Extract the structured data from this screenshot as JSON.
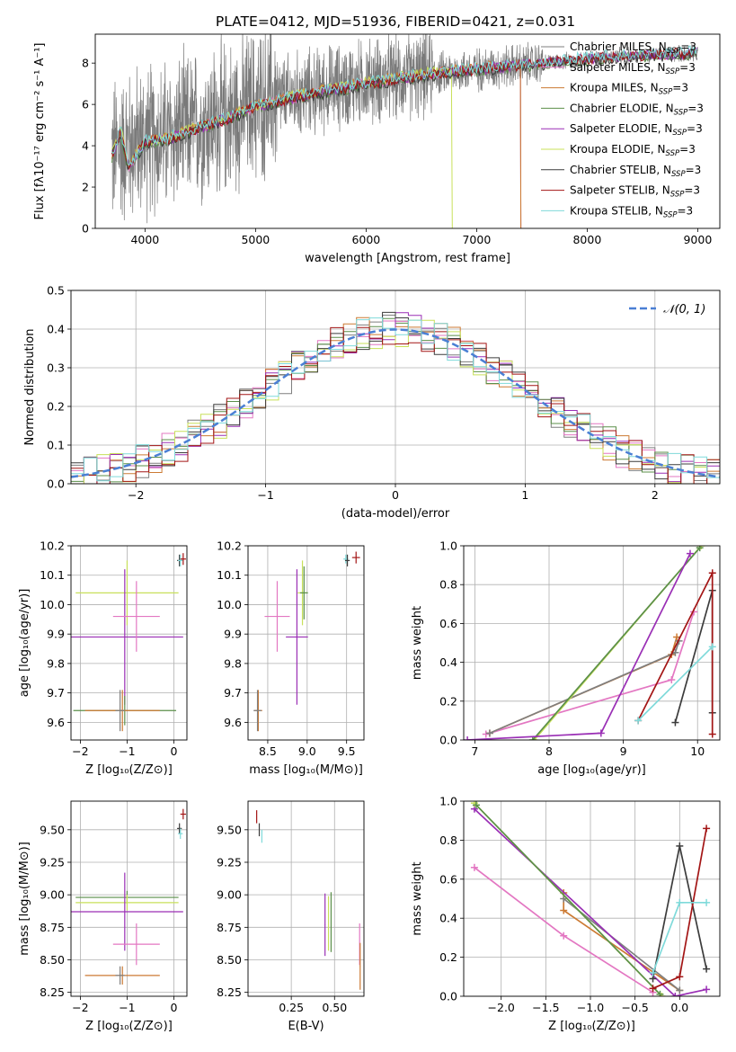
{
  "figure_title": "PLATE=0412, MJD=51936, FIBERID=0421, z=0.031",
  "colors": {
    "Chabrier MILES": "#7f7f7f",
    "Salpeter MILES": "#e377c2",
    "Kroupa MILES": "#cc7a33",
    "Chabrier ELODIE": "#5b8f4a",
    "Salpeter ELODIE": "#9a2fb5",
    "Kroupa ELODIE": "#c8e05a",
    "Chabrier STELIB": "#3c3c3c",
    "Salpeter STELIB": "#a31515",
    "Kroupa STELIB": "#7fdada",
    "gaussian": "#4a7fd4",
    "grid": "#b0b0b0"
  },
  "chart_data": [
    {
      "id": "spectrum",
      "type": "line",
      "title": "PLATE=0412, MJD=51936, FIBERID=0421, z=0.031",
      "xlabel": "wavelength [Angstrom, rest frame]",
      "ylabel": "Flux [fλ10⁻¹⁷ erg cm⁻² s⁻¹ A⁻¹]",
      "xlim": [
        3550,
        9200
      ],
      "ylim": [
        0,
        9.4
      ],
      "xticks": [
        4000,
        5000,
        6000,
        7000,
        8000,
        9000
      ],
      "yticks": [
        0,
        2,
        4,
        6,
        8
      ],
      "grid": false,
      "legend_position": "right",
      "legend": [
        {
          "base": "Chabrier MILES",
          "sub": "SSP",
          "tail": "=3",
          "label": "Chabrier MILES, N"
        },
        {
          "base": "Salpeter MILES",
          "sub": "SSP",
          "tail": "=3",
          "label": "Salpeter MILES, N"
        },
        {
          "base": "Kroupa MILES",
          "sub": "SSP",
          "tail": "=3",
          "label": "Kroupa MILES, N"
        },
        {
          "base": "Chabrier ELODIE",
          "sub": "SSP",
          "tail": "=3",
          "label": "Chabrier ELODIE, N"
        },
        {
          "base": "Salpeter ELODIE",
          "sub": "SSP",
          "tail": "=3",
          "label": "Salpeter ELODIE, N"
        },
        {
          "base": "Kroupa ELODIE",
          "sub": "SSP",
          "tail": "=3",
          "label": "Kroupa ELODIE, N"
        },
        {
          "base": "Chabrier STELIB",
          "sub": "SSP",
          "tail": "=3",
          "label": "Chabrier STELIB, N"
        },
        {
          "base": "Salpeter STELIB",
          "sub": "SSP",
          "tail": "=3",
          "label": "Salpeter STELIB, N"
        },
        {
          "base": "Kroupa STELIB",
          "sub": "SSP",
          "tail": "=3",
          "label": "Kroupa STELIB, N"
        }
      ],
      "observed_envelope": {
        "x": [
          3700,
          3800,
          4000,
          4200,
          4500,
          4800,
          5000,
          5500,
          6000,
          6500,
          7000,
          7400,
          7800,
          8200,
          8600,
          9000
        ],
        "y": [
          3.6,
          3.9,
          4.3,
          4.4,
          5.0,
          5.5,
          6.0,
          6.6,
          7.1,
          7.4,
          7.7,
          7.9,
          8.1,
          8.3,
          8.4,
          8.5
        ]
      },
      "model_envelope": {
        "x": [
          3700,
          3780,
          3850,
          4000,
          4200,
          4500,
          4800,
          5000,
          5500,
          6000,
          6500,
          7000,
          7400,
          7800,
          8200,
          8600,
          9000
        ],
        "y": [
          3.5,
          4.7,
          2.9,
          4.2,
          4.3,
          4.9,
          5.4,
          5.9,
          6.5,
          7.0,
          7.4,
          7.7,
          7.9,
          8.1,
          8.3,
          8.4,
          8.5
        ]
      },
      "model_end_x": {
        "Kroupa ELODIE": 6780,
        "Kroupa MILES": 7400,
        "Chabrier MILES": 7400,
        "Salpeter MILES": 7400
      }
    },
    {
      "id": "residuals",
      "type": "histogram",
      "xlabel": "(data-model)/error",
      "ylabel": "Normed distribution",
      "xlim": [
        -2.5,
        2.5
      ],
      "ylim": [
        0,
        0.5
      ],
      "xticks": [
        -2,
        -1,
        0,
        1,
        2
      ],
      "yticks": [
        0.0,
        0.1,
        0.2,
        0.3,
        0.4,
        0.5
      ],
      "grid": true,
      "legend_position": "top-right",
      "legend_label": "𝒩(0, 1)",
      "bin_width": 0.1,
      "gaussian": {
        "mean": 0,
        "sigma": 1
      }
    },
    {
      "id": "age_vs_Z",
      "type": "errorbar",
      "xlabel": "Z [log₁₀(Z/Z⊙)]",
      "ylabel": "age  [log₁₀(age/yr)]",
      "xlim": [
        -2.2,
        0.28
      ],
      "ylim": [
        9.54,
        10.2
      ],
      "xticks": [
        -2,
        -1,
        0
      ],
      "yticks": [
        9.6,
        9.7,
        9.8,
        9.9,
        10.0,
        10.1,
        10.2
      ],
      "grid": true,
      "points": [
        {
          "model": "Kroupa ELODIE",
          "x": -1.0,
          "xerr": 1.1,
          "y": 10.04,
          "yerr": 0.11
        },
        {
          "model": "Salpeter ELODIE",
          "x": -1.05,
          "xerr": 1.25,
          "y": 9.89,
          "yerr": 0.23
        },
        {
          "model": "Chabrier ELODIE",
          "x": -1.05,
          "xerr": 1.1,
          "y": 9.64,
          "yerr": 0.05
        },
        {
          "model": "Salpeter MILES",
          "x": -0.8,
          "xerr": 0.5,
          "y": 9.96,
          "yerr": 0.12
        },
        {
          "model": "Kroupa MILES",
          "x": -1.1,
          "xerr": 0.8,
          "y": 9.64,
          "yerr": 0.07
        },
        {
          "model": "Chabrier MILES",
          "x": -1.15,
          "xerr": 0.1,
          "y": 9.64,
          "yerr": 0.07
        },
        {
          "model": "Chabrier STELIB",
          "x": 0.12,
          "xerr": 0.05,
          "y": 10.15,
          "yerr": 0.02
        },
        {
          "model": "Kroupa STELIB",
          "x": 0.14,
          "xerr": 0.05,
          "y": 10.15,
          "yerr": 0.02
        },
        {
          "model": "Salpeter STELIB",
          "x": 0.2,
          "xerr": 0.06,
          "y": 10.155,
          "yerr": 0.02
        }
      ]
    },
    {
      "id": "age_vs_mass",
      "type": "errorbar",
      "xlabel": "mass [log₁₀(M/M⊙)]",
      "ylabel": "",
      "xlim": [
        8.25,
        9.72
      ],
      "ylim": [
        9.54,
        10.2
      ],
      "xticks": [
        8.5,
        9.0,
        9.5
      ],
      "yticks": [
        9.6,
        9.7,
        9.8,
        9.9,
        10.0,
        10.1,
        10.2
      ],
      "grid": true,
      "points": [
        {
          "model": "Kroupa ELODIE",
          "x": 8.94,
          "xerr": 0.06,
          "y": 10.04,
          "yerr": 0.11
        },
        {
          "model": "Chabrier ELODIE",
          "x": 8.96,
          "xerr": 0.05,
          "y": 10.04,
          "yerr": 0.09
        },
        {
          "model": "Salpeter ELODIE",
          "x": 8.87,
          "xerr": 0.14,
          "y": 9.89,
          "yerr": 0.23
        },
        {
          "model": "Salpeter MILES",
          "x": 8.62,
          "xerr": 0.16,
          "y": 9.96,
          "yerr": 0.12
        },
        {
          "model": "Kroupa MILES",
          "x": 8.38,
          "xerr": 0.05,
          "y": 9.64,
          "yerr": 0.07
        },
        {
          "model": "Chabrier MILES",
          "x": 8.37,
          "xerr": 0.05,
          "y": 9.64,
          "yerr": 0.07
        },
        {
          "model": "Kroupa STELIB",
          "x": 9.49,
          "xerr": 0.03,
          "y": 10.155,
          "yerr": 0.015
        },
        {
          "model": "Chabrier STELIB",
          "x": 9.51,
          "xerr": 0.03,
          "y": 10.15,
          "yerr": 0.02
        },
        {
          "model": "Salpeter STELIB",
          "x": 9.62,
          "xerr": 0.05,
          "y": 10.16,
          "yerr": 0.02
        }
      ]
    },
    {
      "id": "weight_vs_age",
      "type": "line",
      "xlabel": "age  [log₁₀(age/yr)]",
      "ylabel": "mass weight",
      "xlim": [
        6.85,
        10.3
      ],
      "ylim": [
        0,
        1.0
      ],
      "xticks": [
        7,
        8,
        9,
        10
      ],
      "yticks": [
        0.0,
        0.2,
        0.4,
        0.6,
        0.8,
        1.0
      ],
      "grid": true,
      "series": [
        {
          "model": "Kroupa MILES",
          "x": [
            7.2,
            9.65,
            9.72
          ],
          "y": [
            0.035,
            0.44,
            0.53
          ]
        },
        {
          "model": "Salpeter MILES",
          "x": [
            7.15,
            9.65,
            9.95
          ],
          "y": [
            0.03,
            0.31,
            0.66
          ]
        },
        {
          "model": "Chabrier MILES",
          "x": [
            7.2,
            9.7,
            9.75
          ],
          "y": [
            0.035,
            0.45,
            0.51
          ]
        },
        {
          "model": "Kroupa ELODIE",
          "x": [
            7.8,
            10.05
          ],
          "y": [
            0.0,
            1.0
          ]
        },
        {
          "model": "Chabrier ELODIE",
          "x": [
            7.78,
            10.03
          ],
          "y": [
            0.0,
            0.99
          ]
        },
        {
          "model": "Salpeter ELODIE",
          "x": [
            6.9,
            8.7,
            9.9
          ],
          "y": [
            0.0,
            0.035,
            0.96
          ]
        },
        {
          "model": "Chabrier STELIB",
          "x": [
            9.7,
            10.2,
            10.2
          ],
          "y": [
            0.09,
            0.77,
            0.14
          ]
        },
        {
          "model": "Salpeter STELIB",
          "x": [
            9.2,
            10.2,
            10.2
          ],
          "y": [
            0.1,
            0.86,
            0.03
          ]
        },
        {
          "model": "Kroupa STELIB",
          "x": [
            9.2,
            10.2
          ],
          "y": [
            0.1,
            0.48
          ]
        }
      ]
    },
    {
      "id": "mass_vs_Z",
      "type": "errorbar",
      "xlabel": "Z [log₁₀(Z/Z⊙)]",
      "ylabel": "mass [log₁₀(M/M⊙)]",
      "xlim": [
        -2.2,
        0.28
      ],
      "ylim": [
        8.22,
        9.72
      ],
      "xticks": [
        -2,
        -1,
        0
      ],
      "yticks": [
        8.25,
        8.5,
        8.75,
        9.0,
        9.25,
        9.5
      ],
      "grid": true,
      "points": [
        {
          "model": "Chabrier ELODIE",
          "x": -1.0,
          "xerr": 1.1,
          "y": 8.98,
          "yerr": 0.05
        },
        {
          "model": "Kroupa ELODIE",
          "x": -1.0,
          "xerr": 1.1,
          "y": 8.94,
          "yerr": 0.06
        },
        {
          "model": "Salpeter ELODIE",
          "x": -1.05,
          "xerr": 1.25,
          "y": 8.87,
          "yerr": 0.3
        },
        {
          "model": "Salpeter MILES",
          "x": -0.8,
          "xerr": 0.5,
          "y": 8.62,
          "yerr": 0.16
        },
        {
          "model": "Kroupa MILES",
          "x": -1.1,
          "xerr": 0.8,
          "y": 8.38,
          "yerr": 0.07
        },
        {
          "model": "Chabrier MILES",
          "x": -1.15,
          "xerr": 0.1,
          "y": 8.38,
          "yerr": 0.07
        },
        {
          "model": "Chabrier STELIB",
          "x": 0.12,
          "xerr": 0.05,
          "y": 9.51,
          "yerr": 0.04
        },
        {
          "model": "Kroupa STELIB",
          "x": 0.14,
          "xerr": 0.05,
          "y": 9.47,
          "yerr": 0.04
        },
        {
          "model": "Salpeter STELIB",
          "x": 0.2,
          "xerr": 0.06,
          "y": 9.62,
          "yerr": 0.04
        }
      ]
    },
    {
      "id": "mass_vs_EBV",
      "type": "errorbar",
      "xlabel": "E(B-V)",
      "ylabel": "",
      "xlim": [
        0.0,
        0.67
      ],
      "ylim": [
        8.22,
        9.72
      ],
      "xticks": [
        0.25,
        0.5
      ],
      "yticks": [
        8.25,
        8.5,
        8.75,
        9.0,
        9.25,
        9.5
      ],
      "grid": true,
      "points": [
        {
          "model": "Salpeter STELIB",
          "x": 0.05,
          "xerr": 0.002,
          "y": 9.6,
          "yerr": 0.05
        },
        {
          "model": "Chabrier STELIB",
          "x": 0.065,
          "xerr": 0.002,
          "y": 9.5,
          "yerr": 0.05
        },
        {
          "model": "Kroupa STELIB",
          "x": 0.08,
          "xerr": 0.002,
          "y": 9.45,
          "yerr": 0.05
        },
        {
          "model": "Salpeter ELODIE",
          "x": 0.445,
          "xerr": 0.002,
          "y": 8.77,
          "yerr": 0.24
        },
        {
          "model": "Kroupa ELODIE",
          "x": 0.465,
          "xerr": 0.002,
          "y": 8.78,
          "yerr": 0.21
        },
        {
          "model": "Chabrier ELODIE",
          "x": 0.48,
          "xerr": 0.002,
          "y": 8.79,
          "yerr": 0.23
        },
        {
          "model": "Salpeter MILES",
          "x": 0.645,
          "xerr": 0.002,
          "y": 8.62,
          "yerr": 0.16
        },
        {
          "model": "Kroupa MILES",
          "x": 0.648,
          "xerr": 0.002,
          "y": 8.45,
          "yerr": 0.18
        }
      ]
    },
    {
      "id": "weight_vs_Z",
      "type": "line",
      "xlabel": "Z [log₁₀(Z/Z⊙)]",
      "ylabel": "mass weight",
      "xlim": [
        -2.42,
        0.45
      ],
      "ylim": [
        0,
        1.0
      ],
      "xticks": [
        -2.0,
        -1.5,
        -1.0,
        -0.5,
        0.0
      ],
      "yticks": [
        0.0,
        0.2,
        0.4,
        0.6,
        0.8,
        1.0
      ],
      "grid": true,
      "series": [
        {
          "model": "Salpeter MILES",
          "x": [
            -2.3,
            -1.3,
            -0.3
          ],
          "y": [
            0.66,
            0.31,
            0.02
          ]
        },
        {
          "model": "Kroupa MILES",
          "x": [
            -1.3,
            -1.3,
            0.0
          ],
          "y": [
            0.53,
            0.44,
            0.03
          ]
        },
        {
          "model": "Chabrier MILES",
          "x": [
            -1.3,
            0.0
          ],
          "y": [
            0.5,
            0.03
          ]
        },
        {
          "model": "Salpeter ELODIE",
          "x": [
            -2.3,
            -0.05,
            0.3
          ],
          "y": [
            0.96,
            0.0,
            0.035
          ]
        },
        {
          "model": "Kroupa ELODIE",
          "x": [
            -2.3,
            -0.2
          ],
          "y": [
            0.99,
            0.0
          ]
        },
        {
          "model": "Chabrier ELODIE",
          "x": [
            -2.28,
            -0.22
          ],
          "y": [
            0.98,
            0.01
          ]
        },
        {
          "model": "Chabrier STELIB",
          "x": [
            -0.3,
            0.0,
            0.3
          ],
          "y": [
            0.09,
            0.77,
            0.14
          ]
        },
        {
          "model": "Salpeter STELIB",
          "x": [
            -0.3,
            0.0,
            0.3
          ],
          "y": [
            0.04,
            0.1,
            0.86
          ]
        },
        {
          "model": "Kroupa STELIB",
          "x": [
            -0.3,
            0.0,
            0.3
          ],
          "y": [
            0.12,
            0.48,
            0.48
          ]
        }
      ]
    }
  ]
}
